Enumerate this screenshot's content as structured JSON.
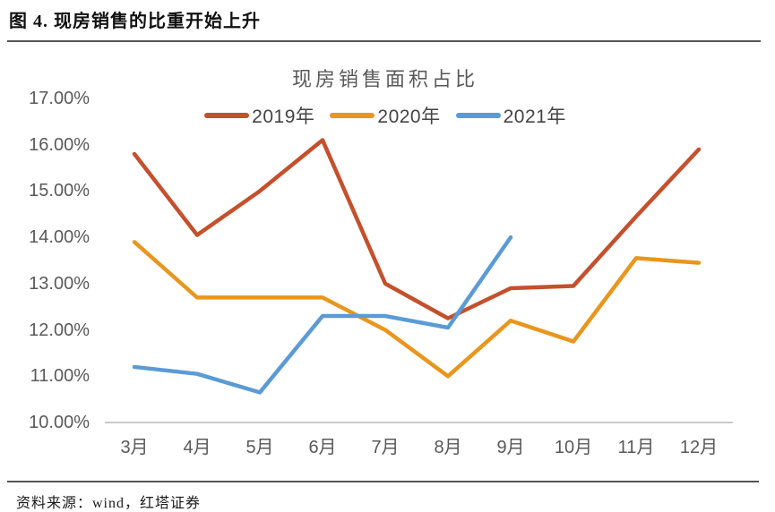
{
  "page": {
    "title": "图 4. 现房销售的比重开始上升",
    "source": "资料来源：wind，红塔证券"
  },
  "chart_data": {
    "type": "line",
    "title": "现房销售面积占比",
    "categories": [
      "3月",
      "4月",
      "5月",
      "6月",
      "7月",
      "8月",
      "9月",
      "10月",
      "11月",
      "12月"
    ],
    "series": [
      {
        "name": "2019年",
        "color": "#C4502C",
        "values": [
          15.8,
          14.05,
          15.0,
          16.1,
          13.0,
          12.25,
          12.9,
          12.95,
          14.45,
          15.9
        ]
      },
      {
        "name": "2020年",
        "color": "#E8961E",
        "values": [
          13.9,
          12.7,
          12.7,
          12.7,
          12.0,
          11.0,
          12.2,
          11.75,
          13.55,
          13.45
        ]
      },
      {
        "name": "2021年",
        "color": "#5B9BD5",
        "values": [
          11.2,
          11.05,
          10.65,
          12.3,
          12.3,
          12.05,
          14.0,
          null,
          null,
          null
        ]
      }
    ],
    "ylim": [
      10,
      17
    ],
    "ytick_step": 1,
    "ytick_suffix": "%",
    "ytick_decimals": 2,
    "grid": false,
    "legend_position": "top",
    "axis_text_color": "#595959"
  }
}
